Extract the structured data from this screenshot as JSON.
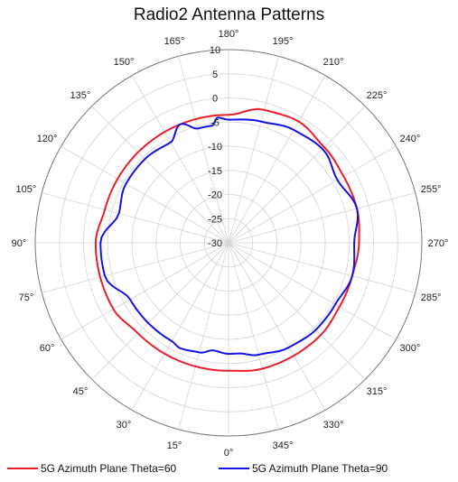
{
  "chart_data": {
    "type": "polar-line",
    "title": "Radio2 Antenna Patterns",
    "radial_axis": {
      "min": -30,
      "max": 10,
      "step": 5,
      "ticks": [
        -30,
        -25,
        -20,
        -15,
        -10,
        -5,
        0,
        5,
        10
      ]
    },
    "angular_axis": {
      "unit": "degrees",
      "zero_position": "bottom",
      "direction": "counterclockwise",
      "tick_labels": [
        "0°",
        "15°",
        "30°",
        "45°",
        "60°",
        "75°",
        "90°",
        "105°",
        "120°",
        "135°",
        "150°",
        "165°",
        "180°",
        "195°",
        "210°",
        "225°",
        "240°",
        "255°",
        "270°",
        "285°",
        "300°",
        "315°",
        "330°",
        "345°"
      ]
    },
    "grid": true,
    "legend_position": "bottom",
    "series": [
      {
        "name": "5G Azimuth Plane Theta=60",
        "color": "#ee1c25",
        "angles": [
          0,
          15,
          30,
          45,
          60,
          75,
          90,
          105,
          120,
          135,
          150,
          165,
          180,
          195,
          210,
          225,
          240,
          255,
          270,
          285,
          300,
          315,
          330,
          345
        ],
        "values": [
          -3.5,
          -3.5,
          -3.5,
          -3.5,
          -2.5,
          -2.5,
          -2.5,
          -3.5,
          -3.5,
          -3.5,
          -3.5,
          -3.5,
          -3.5,
          -1.5,
          -1.0,
          -2.0,
          -2.5,
          -2.5,
          -3.0,
          -3.5,
          -3.5,
          -3.0,
          -3.0,
          -3.0
        ]
      },
      {
        "name": "5G Azimuth Plane Theta=90",
        "color": "#1212e6",
        "angles": [
          0,
          8,
          15,
          25,
          30,
          45,
          60,
          75,
          90,
          105,
          120,
          135,
          150,
          158,
          165,
          172,
          175,
          180,
          195,
          210,
          225,
          240,
          255,
          270,
          285,
          300,
          315,
          330,
          345,
          355
        ],
        "values": [
          -7.0,
          -7.5,
          -6.5,
          -6.0,
          -6.5,
          -6.5,
          -6.5,
          -3.5,
          -3.5,
          -6.5,
          -5.5,
          -5.5,
          -6.0,
          -3.5,
          -5.5,
          -5.5,
          -4.0,
          -4.5,
          -4.0,
          -3.0,
          -2.5,
          -4.0,
          -2.5,
          -4.0,
          -3.5,
          -4.5,
          -4.5,
          -5.0,
          -6.0,
          -7.0
        ]
      }
    ]
  }
}
